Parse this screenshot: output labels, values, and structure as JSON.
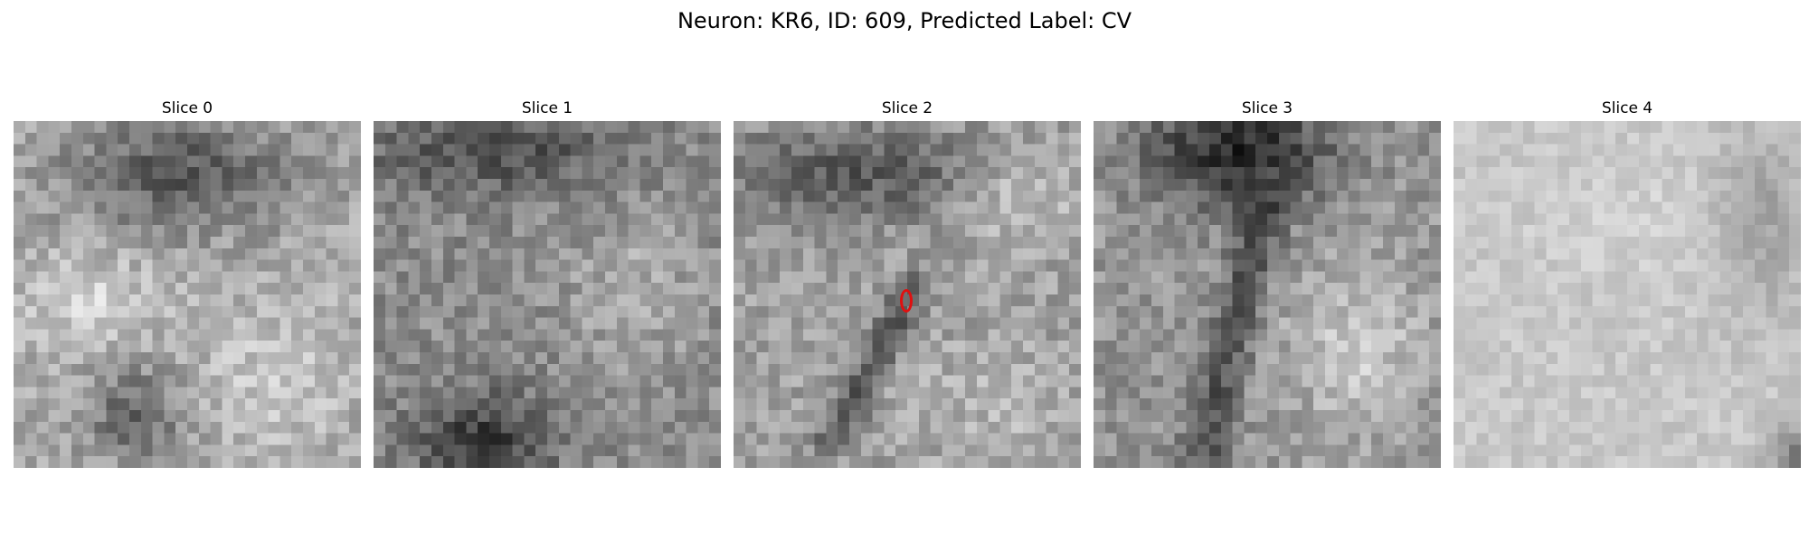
{
  "figure": {
    "title": "Neuron: KR6, ID: 609, Predicted Label: CV"
  },
  "panels": [
    {
      "title": "Slice 0",
      "marker": false
    },
    {
      "title": "Slice 1",
      "marker": false
    },
    {
      "title": "Slice 2",
      "marker": true
    },
    {
      "title": "Slice 3",
      "marker": false
    },
    {
      "title": "Slice 4",
      "marker": false
    }
  ],
  "style": {
    "marker_color": "#e01010",
    "colormap": "grayscale"
  }
}
